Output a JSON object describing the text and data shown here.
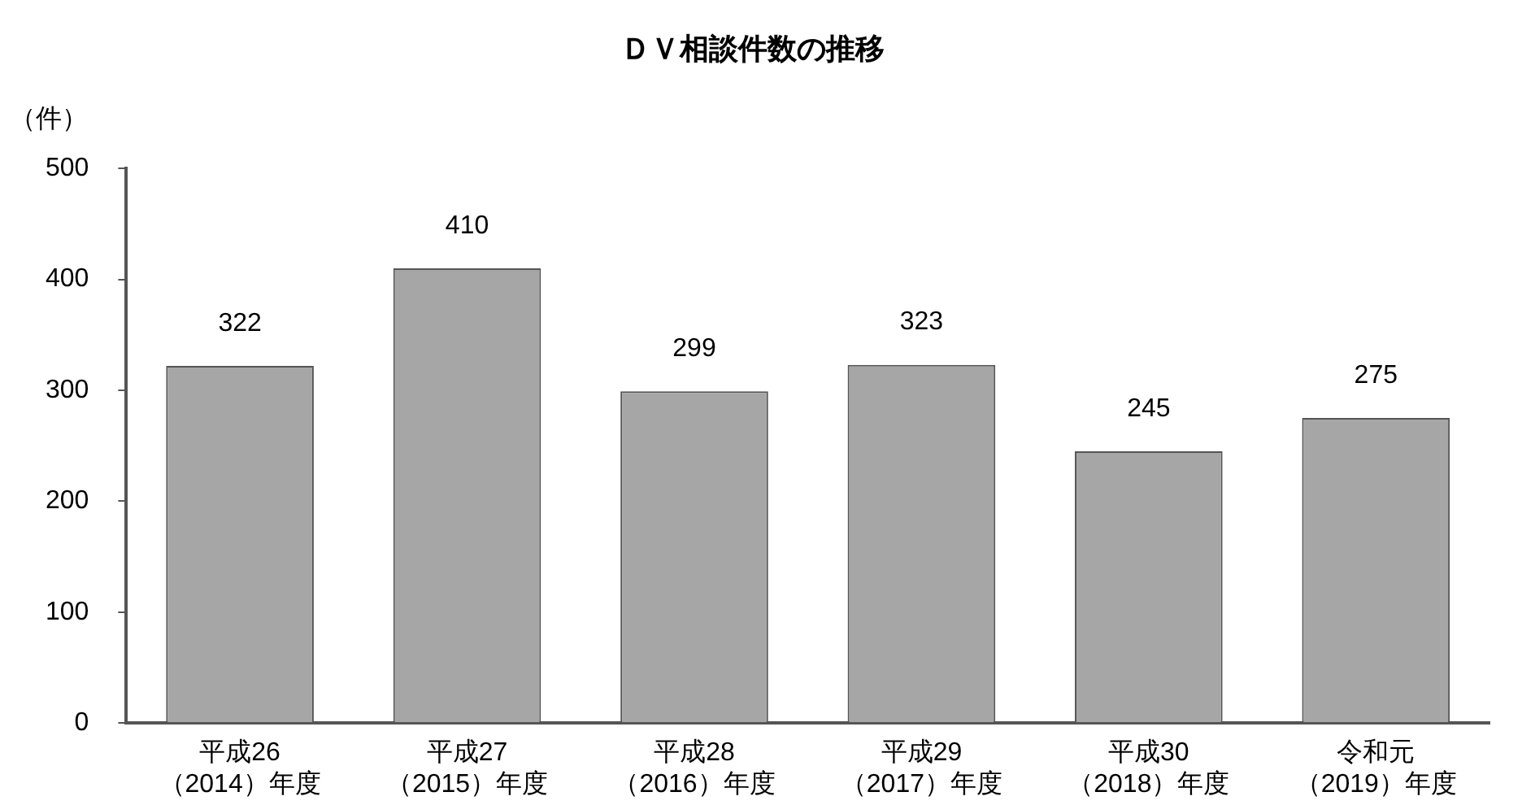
{
  "chart_data": {
    "type": "bar",
    "title": "ＤＶ相談件数の推移",
    "ylabel": "（件）",
    "categories": [
      "平成26（2014）年度",
      "平成27（2015）年度",
      "平成28（2016）年度",
      "平成29（2017）年度",
      "平成30（2018）年度",
      "令和元（2019）年度"
    ],
    "values": [
      322,
      410,
      299,
      323,
      245,
      275
    ],
    "color": "#a6a6a6",
    "ylim": [
      0,
      500
    ],
    "yticks": [
      0,
      100,
      200,
      300,
      400,
      500
    ],
    "grid": false,
    "legend": false,
    "data_labels": true
  }
}
